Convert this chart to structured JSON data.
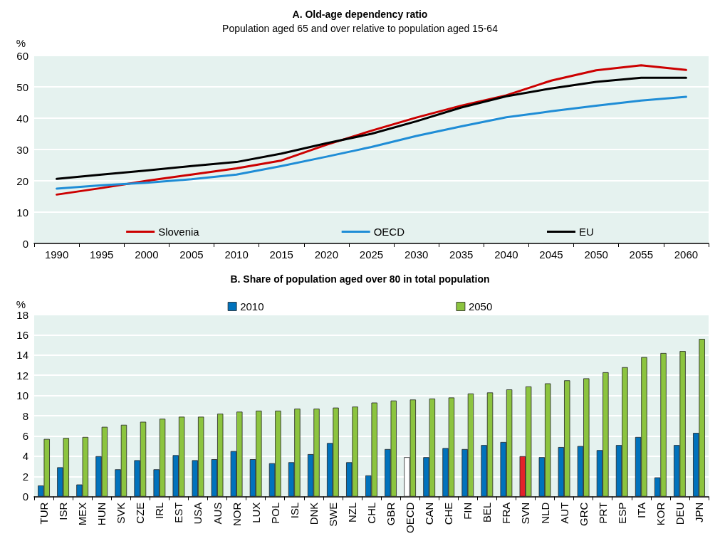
{
  "chart_data": [
    {
      "type": "line",
      "title": "A. Old-age dependency ratio",
      "subtitle": "Population aged 65 and over relative to population aged 15-64",
      "ylabel": "%",
      "categories": [
        "1990",
        "1995",
        "2000",
        "2005",
        "2010",
        "2015",
        "2020",
        "2025",
        "2030",
        "2035",
        "2040",
        "2045",
        "2050",
        "2055",
        "2060"
      ],
      "series": [
        {
          "name": "Slovenia",
          "color": "#cc0000",
          "values": [
            15.6,
            17.7,
            20.0,
            22.0,
            24.0,
            26.5,
            31.5,
            36.0,
            40.2,
            44.0,
            47.3,
            52.0,
            55.3,
            56.9,
            55.4
          ]
        },
        {
          "name": "OECD",
          "color": "#1f8dd6",
          "values": [
            17.5,
            18.6,
            19.4,
            20.5,
            22.0,
            24.7,
            27.7,
            30.8,
            34.3,
            37.4,
            40.3,
            42.2,
            44.0,
            45.6,
            46.8
          ]
        },
        {
          "name": "EU",
          "color": "#000000",
          "values": [
            20.6,
            22.0,
            23.3,
            24.7,
            26.0,
            28.7,
            32.0,
            35.0,
            39.0,
            43.4,
            47.0,
            49.5,
            51.6,
            52.9,
            52.9
          ]
        }
      ],
      "ylim": [
        0,
        60
      ],
      "yticks": [
        0,
        10,
        20,
        30,
        40,
        50,
        60
      ],
      "grid": "y",
      "legend": "bottom",
      "marker": "none",
      "line_style": "solid"
    },
    {
      "type": "bar",
      "title": "B. Share of population aged over 80 in total population",
      "ylabel": "%",
      "categories": [
        "TUR",
        "ISR",
        "MEX",
        "HUN",
        "SVK",
        "CZE",
        "IRL",
        "EST",
        "USA",
        "AUS",
        "NOR",
        "LUX",
        "POL",
        "ISL",
        "DNK",
        "SWE",
        "NZL",
        "CHL",
        "GBR",
        "OECD",
        "CAN",
        "CHE",
        "FIN",
        "BEL",
        "FRA",
        "SVN",
        "NLD",
        "AUT",
        "GRC",
        "PRT",
        "ESP",
        "ITA",
        "KOR",
        "DEU",
        "JPN"
      ],
      "series": [
        {
          "name": "2010",
          "color": "#0072bc",
          "colors": [
            "#0072bc",
            "#0072bc",
            "#0072bc",
            "#0072bc",
            "#0072bc",
            "#0072bc",
            "#0072bc",
            "#0072bc",
            "#0072bc",
            "#0072bc",
            "#0072bc",
            "#0072bc",
            "#0072bc",
            "#0072bc",
            "#0072bc",
            "#0072bc",
            "#0072bc",
            "#0072bc",
            "#0072bc",
            "#ffffff",
            "#0072bc",
            "#0072bc",
            "#0072bc",
            "#0072bc",
            "#0072bc",
            "#e3202a",
            "#0072bc",
            "#0072bc",
            "#0072bc",
            "#0072bc",
            "#0072bc",
            "#0072bc",
            "#0072bc",
            "#0072bc",
            "#0072bc"
          ],
          "values": [
            1.1,
            2.9,
            1.2,
            4.0,
            2.7,
            3.6,
            2.7,
            4.1,
            3.6,
            3.7,
            4.5,
            3.7,
            3.3,
            3.4,
            4.2,
            5.3,
            3.4,
            2.1,
            4.7,
            3.9,
            3.9,
            4.8,
            4.7,
            5.1,
            5.4,
            4.0,
            3.9,
            4.9,
            5.0,
            4.6,
            5.1,
            5.9,
            1.9,
            5.1,
            6.3
          ]
        },
        {
          "name": "2050",
          "color": "#8cc43f",
          "values": [
            5.7,
            5.8,
            5.9,
            6.9,
            7.1,
            7.4,
            7.7,
            7.9,
            7.9,
            8.2,
            8.4,
            8.5,
            8.5,
            8.7,
            8.7,
            8.8,
            8.9,
            9.3,
            9.5,
            9.6,
            9.7,
            9.8,
            10.2,
            10.3,
            10.6,
            10.9,
            11.2,
            11.5,
            11.7,
            12.3,
            12.8,
            13.8,
            14.2,
            14.4,
            15.6
          ]
        }
      ],
      "ylim": [
        0,
        18
      ],
      "yticks": [
        0,
        2,
        4,
        6,
        8,
        10,
        12,
        14,
        16,
        18
      ],
      "grid": "y",
      "legend": "top"
    }
  ]
}
